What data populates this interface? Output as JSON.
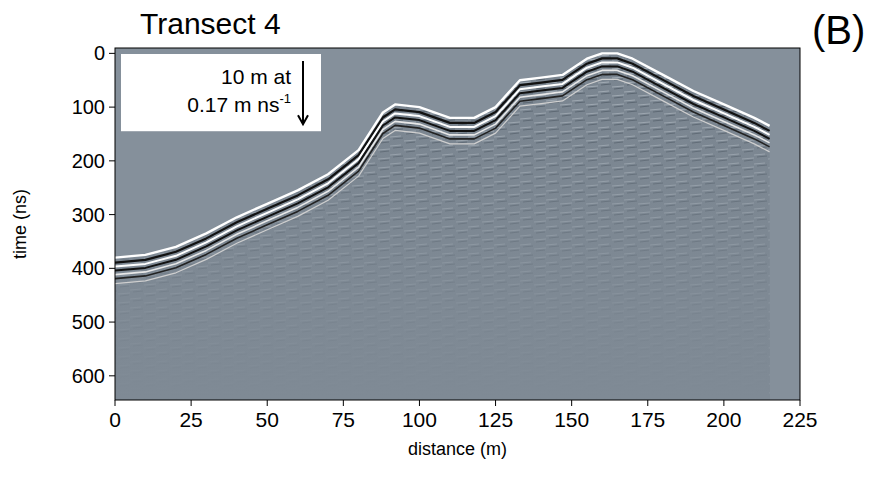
{
  "chart_data": {
    "type": "line",
    "title": "Transect 4",
    "panel_label": "(B)",
    "x_label": "distance (m)",
    "y_label": "time (ns)",
    "x": [
      0,
      10,
      20,
      30,
      40,
      50,
      60,
      70,
      80,
      88,
      92,
      100,
      110,
      118,
      125,
      133,
      140,
      147,
      155,
      160,
      165,
      170,
      180,
      190,
      200,
      210,
      215
    ],
    "values": [
      380,
      375,
      360,
      335,
      305,
      280,
      255,
      225,
      180,
      110,
      95,
      100,
      120,
      120,
      100,
      50,
      45,
      40,
      10,
      0,
      0,
      10,
      40,
      70,
      95,
      120,
      135
    ],
    "color": "#ffffff",
    "xlim": [
      0,
      225
    ],
    "ylim": [
      -10,
      645
    ],
    "xticks": [
      0,
      25,
      50,
      75,
      100,
      125,
      150,
      175,
      200,
      225
    ],
    "yticks": [
      0,
      100,
      200,
      300,
      400,
      500,
      600
    ],
    "scale_bar": {
      "lines": [
        "10 m at",
        "0.17 m ns"
      ],
      "superscript": "-1",
      "length": 10,
      "velocity": 0.17
    }
  }
}
